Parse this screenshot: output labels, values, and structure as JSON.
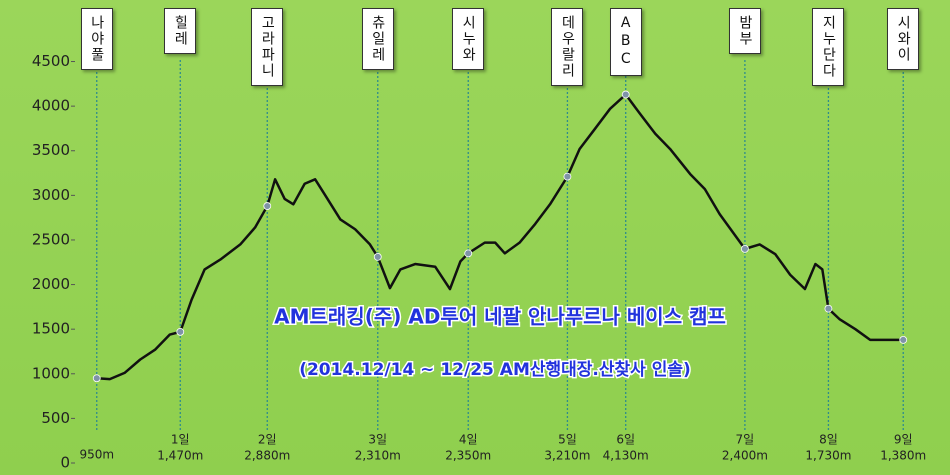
{
  "chart_data": {
    "type": "line",
    "title": "AM트래킹(주) AD투어 네팔 안나푸르나 베이스 캠프",
    "subtitle": "(2014.12/14 ~ 12/25 AM산행대장.산찾사 인솔)",
    "xlim": [
      0,
      100
    ],
    "ylim": [
      0,
      5100
    ],
    "yticks": [
      0,
      500,
      1000,
      1500,
      2000,
      2500,
      3000,
      3500,
      4000,
      4500
    ],
    "grid": false,
    "series": [
      {
        "color": "#111111",
        "x": [
          2.5,
          4.0,
          5.7,
          7.5,
          9.2,
          10.9,
          12.1,
          13.4,
          14.9,
          16.7,
          19.0,
          20.7,
          22.1,
          23.0,
          24.1,
          25.1,
          26.4,
          27.6,
          28.7,
          30.5,
          32.2,
          33.9,
          34.8,
          36.2,
          37.4,
          39.1,
          41.4,
          43.1,
          44.3,
          45.2,
          47.1,
          48.3,
          49.4,
          51.1,
          52.9,
          54.6,
          56.6,
          58.0,
          59.8,
          61.5,
          63.3,
          64.9,
          66.7,
          68.4,
          70.7,
          72.4,
          74.1,
          77.0,
          78.7,
          80.5,
          82.2,
          83.9,
          85.1,
          85.9,
          86.6,
          87.9,
          89.7,
          91.4,
          93.1,
          95.2
        ],
        "values": [
          950,
          940,
          1010,
          1160,
          1270,
          1440,
          1470,
          1830,
          2170,
          2280,
          2450,
          2640,
          2880,
          3180,
          2960,
          2900,
          3130,
          3180,
          3010,
          2730,
          2620,
          2450,
          2310,
          1960,
          2170,
          2230,
          2200,
          1950,
          2260,
          2350,
          2470,
          2470,
          2350,
          2470,
          2680,
          2900,
          3210,
          3520,
          3750,
          3970,
          4130,
          3920,
          3690,
          3520,
          3240,
          3070,
          2790,
          2400,
          2450,
          2340,
          2110,
          1950,
          2230,
          2170,
          1730,
          1610,
          1500,
          1380,
          1380,
          1380
        ]
      }
    ],
    "stations": {
      "marker_color": "#7f93a8",
      "line_color": "#2f8c8c",
      "x": [
        2.5,
        12.1,
        22.1,
        34.8,
        45.2,
        56.6,
        63.3,
        77.0,
        86.6,
        95.2
      ],
      "names": [
        "나야풀",
        "힐레",
        "고라파니",
        "츄일레",
        "시누와",
        "데우랄리",
        "ABC",
        "밤부",
        "지누단다",
        "시와이"
      ],
      "days": [
        null,
        "1일",
        "2일",
        "3일",
        "4일",
        "5일",
        "6일",
        "7일",
        "8일",
        "9일"
      ],
      "values": [
        950,
        1470,
        2880,
        2310,
        2350,
        3210,
        4130,
        2400,
        1730,
        1380
      ],
      "value_labels": [
        "950m",
        "1,470m",
        "2,880m",
        "2,310m",
        "2,350m",
        "3,210m",
        "4,130m",
        "2,400m",
        "1,730m",
        "1,380m"
      ]
    }
  }
}
